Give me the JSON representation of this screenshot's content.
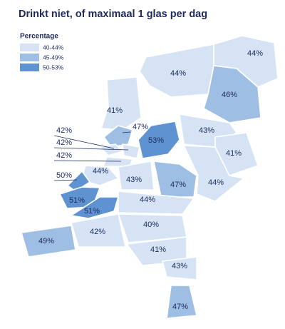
{
  "chart_data": {
    "type": "map",
    "title": "Drinkt niet, of maximaal 1 glas per dag",
    "legend_title": "Percentage",
    "legend": [
      {
        "label": "40-44%",
        "min": 40,
        "max": 44,
        "color": "#d6e3f4"
      },
      {
        "label": "45-49%",
        "min": 45,
        "max": 49,
        "color": "#9ebee4"
      },
      {
        "label": "50-53%",
        "min": 50,
        "max": 53,
        "color": "#5f92d1"
      }
    ],
    "values": [
      44,
      44,
      46,
      41,
      47,
      53,
      43,
      41,
      42,
      42,
      42,
      44,
      43,
      47,
      44,
      50,
      51,
      51,
      44,
      42,
      40,
      49,
      41,
      43,
      47
    ],
    "value_labels": [
      "44%",
      "44%",
      "46%",
      "41%",
      "47%",
      "53%",
      "43%",
      "41%",
      "42%",
      "42%",
      "42%",
      "44%",
      "43%",
      "47%",
      "44%",
      "50%",
      "51%",
      "51%",
      "44%",
      "42%",
      "40%",
      "49%",
      "41%",
      "43%",
      "47%"
    ]
  }
}
